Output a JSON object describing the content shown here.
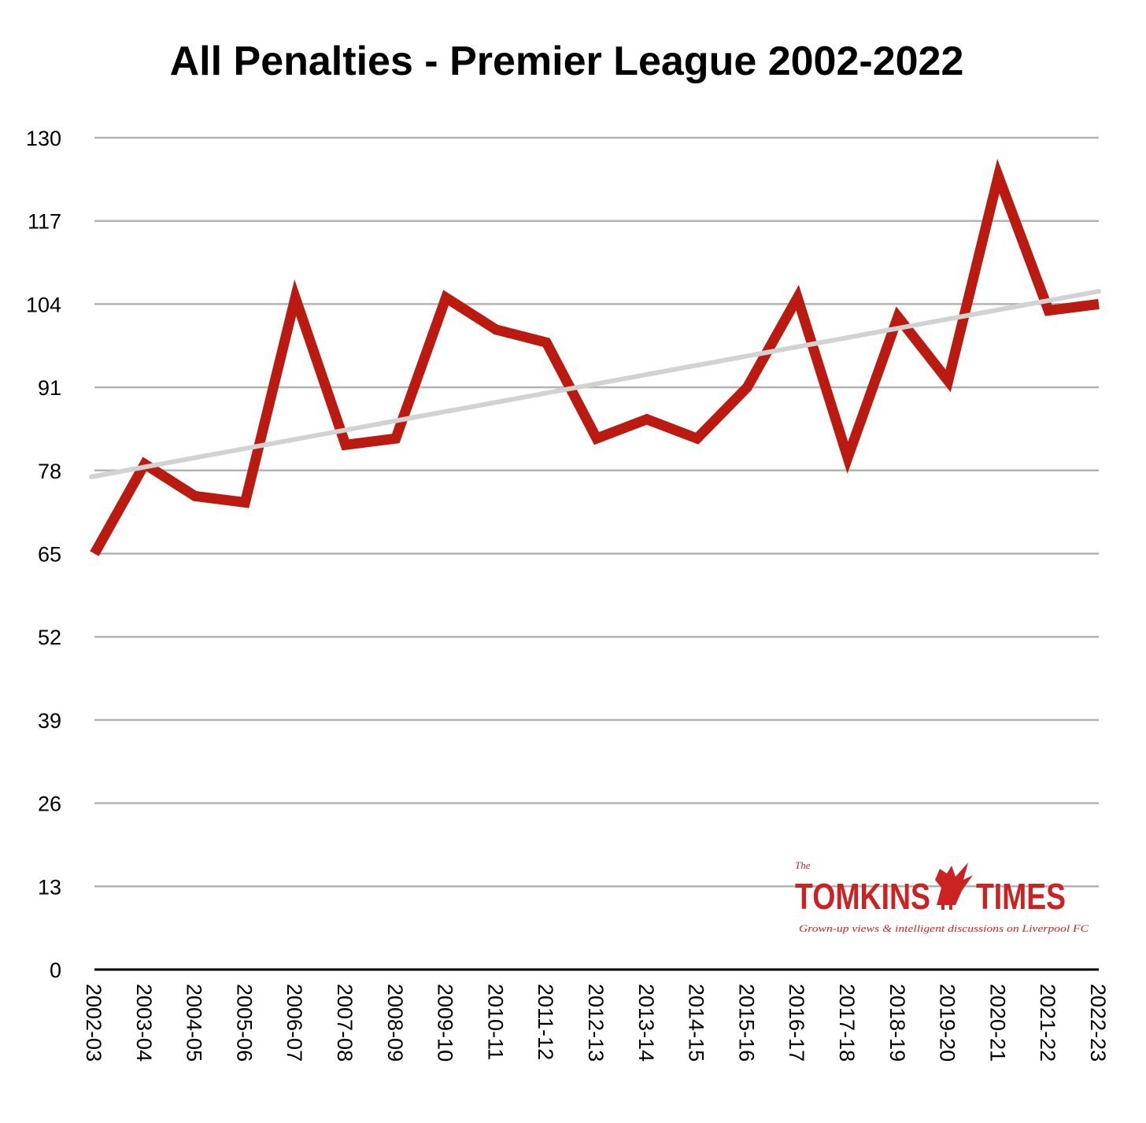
{
  "chart_data": {
    "type": "line",
    "title": "All Penalties - Premier League 2002-2022",
    "xlabel": "",
    "ylabel": "",
    "ylim": [
      0,
      130
    ],
    "yticks": [
      0,
      13,
      26,
      39,
      52,
      65,
      78,
      91,
      104,
      117,
      130
    ],
    "categories": [
      "2002-03",
      "2003-04",
      "2004-05",
      "2005-06",
      "2006-07",
      "2007-08",
      "2008-09",
      "2009-10",
      "2010-11",
      "2011-12",
      "2012-13",
      "2013-14",
      "2014-15",
      "2015-16",
      "2016-17",
      "2017-18",
      "2018-19",
      "2019-20",
      "2020-21",
      "2021-22",
      "2022-23"
    ],
    "series": [
      {
        "values": [
          65,
          79,
          74,
          73,
          105,
          82,
          83,
          105,
          100,
          98,
          83,
          86,
          83,
          91,
          105,
          80,
          102,
          92,
          124,
          103,
          104
        ],
        "color": "#bb1a10"
      }
    ],
    "trendline": {
      "start": 77,
      "end": 106,
      "color": "#d2d2d2"
    },
    "grid": true,
    "legend": "none"
  },
  "logo": {
    "the": "The",
    "name_left": "TOMKINS",
    "name_right": "TIMES",
    "tagline": "Grown-up views & intelligent discussions on Liverpool FC"
  },
  "colors": {
    "line": "#bb1a10",
    "trend": "#d2d2d2",
    "grid": "#b3b3b3",
    "axis": "#000000",
    "brand": "#cc2222"
  }
}
